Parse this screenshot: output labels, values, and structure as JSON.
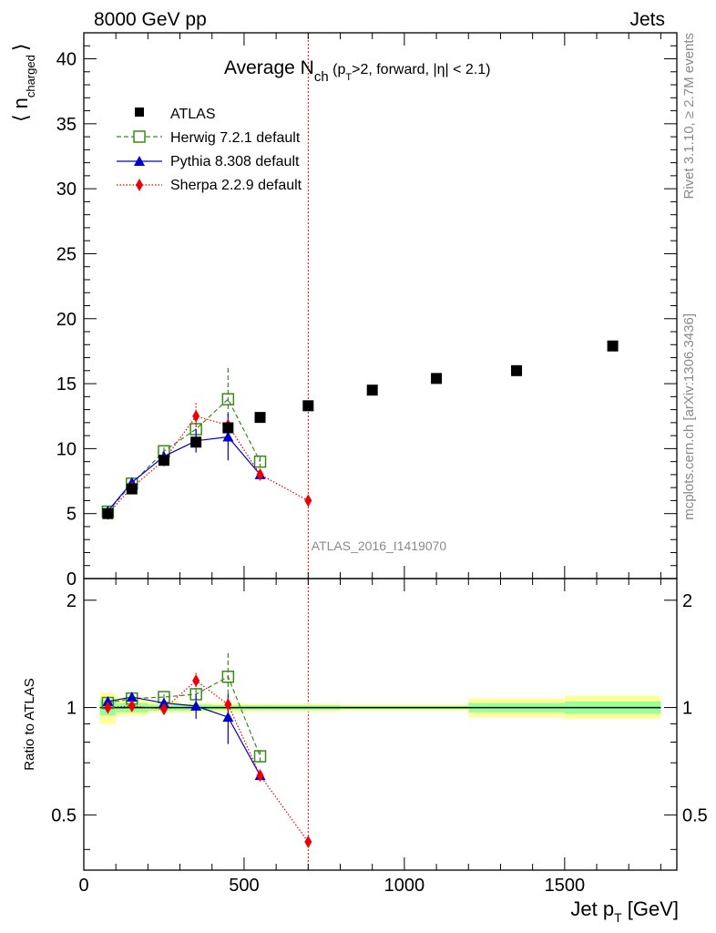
{
  "header": {
    "left": "8000 GeV pp",
    "right": "Jets"
  },
  "side_labels": {
    "rivet": "Rivet 3.1.10, ≥ 2.7M events",
    "mcplots": "mcplots.cern.ch [arXiv:1306.3436]"
  },
  "analysis_id": "ATLAS_2016_I1419070",
  "colors": {
    "atlas": "#000000",
    "herwig": "#3a8a1a",
    "pythia": "#0000cc",
    "sherpa": "#ee0000",
    "band_outer": "#ffff99",
    "band_inner": "#99ff99"
  },
  "chart_data": [
    {
      "type": "scatter",
      "title": "Average N_ch (p_T>2, forward, |η| < 2.1)",
      "title_parts": {
        "main": "Average N",
        "sub1": "ch",
        "paren_open": " (p",
        "sub2": "T",
        "paren_rest": ">2, forward, |η| < 2.1)"
      },
      "ylabel_parts": {
        "bracket_l": "⟨",
        "n": "n",
        "sub": "charged",
        "bracket_r": "⟩"
      },
      "xlim": [
        0,
        1850
      ],
      "ylim": [
        0,
        42
      ],
      "y_ticks": [
        "0",
        "5",
        "10",
        "15",
        "20",
        "25",
        "30",
        "35",
        "40"
      ],
      "legend_position": "top-left",
      "vertical_line_x": 700,
      "series": [
        {
          "name": "ATLAS",
          "x": [
            75,
            150,
            250,
            350,
            450,
            550,
            700,
            900,
            1100,
            1350,
            1650
          ],
          "y": [
            5.0,
            6.9,
            9.1,
            10.5,
            11.6,
            12.4,
            13.3,
            14.5,
            15.4,
            16.0,
            17.9
          ]
        },
        {
          "name": "Herwig 7.2.1 default",
          "x": [
            75,
            150,
            250,
            350,
            450,
            550
          ],
          "y": [
            5.15,
            7.3,
            9.8,
            11.5,
            13.8,
            9.0
          ],
          "err": [
            0.15,
            0.2,
            0.3,
            0.5,
            2.4,
            0.4
          ]
        },
        {
          "name": "Pythia 8.308 default",
          "x": [
            75,
            150,
            250,
            350,
            450,
            550
          ],
          "y": [
            5.2,
            7.4,
            9.4,
            10.6,
            10.9,
            8.0
          ],
          "err": [
            0.1,
            0.2,
            0.3,
            0.9,
            1.8,
            0.2
          ]
        },
        {
          "name": "Sherpa 2.2.9 default",
          "x": [
            75,
            150,
            250,
            350,
            450,
            550,
            700
          ],
          "y": [
            5.0,
            7.0,
            9.1,
            12.5,
            11.8,
            8.0,
            6.0
          ],
          "err": [
            0.1,
            0.2,
            0.3,
            1.0,
            0.6,
            0.2,
            0.1
          ]
        }
      ]
    },
    {
      "type": "scatter",
      "ylabel": "Ratio to ATLAS",
      "xlabel_parts": {
        "main": "Jet p",
        "sub": "T",
        "rest": " [GeV]"
      },
      "xlim": [
        0,
        1850
      ],
      "ylim": [
        0.35,
        2.3
      ],
      "x_ticks": [
        "0",
        "500",
        "1000",
        "1500"
      ],
      "y_ticks": [
        "0.5",
        "1",
        "2"
      ],
      "vertical_line_x": 700,
      "reference_line_y": 1,
      "band_bins": [
        {
          "x0": 50,
          "x1": 100,
          "inner": [
            0.95,
            1.05
          ],
          "outer": [
            0.9,
            1.1
          ]
        },
        {
          "x0": 100,
          "x1": 200,
          "inner": [
            0.97,
            1.03
          ],
          "outer": [
            0.95,
            1.07
          ]
        },
        {
          "x0": 200,
          "x1": 300,
          "inner": [
            0.98,
            1.02
          ],
          "outer": [
            0.97,
            1.04
          ]
        },
        {
          "x0": 300,
          "x1": 400,
          "inner": [
            0.98,
            1.02
          ],
          "outer": [
            0.97,
            1.03
          ]
        },
        {
          "x0": 400,
          "x1": 500,
          "inner": [
            0.985,
            1.015
          ],
          "outer": [
            0.97,
            1.03
          ]
        },
        {
          "x0": 500,
          "x1": 600,
          "inner": [
            0.985,
            1.015
          ],
          "outer": [
            0.975,
            1.025
          ]
        },
        {
          "x0": 600,
          "x1": 800,
          "inner": [
            0.985,
            1.015
          ],
          "outer": [
            0.975,
            1.025
          ]
        },
        {
          "x0": 800,
          "x1": 1000,
          "inner": [
            0.99,
            1.01
          ],
          "outer": [
            0.98,
            1.02
          ]
        },
        {
          "x0": 1000,
          "x1": 1200,
          "inner": [
            0.99,
            1.01
          ],
          "outer": [
            0.98,
            1.02
          ]
        },
        {
          "x0": 1200,
          "x1": 1500,
          "inner": [
            0.97,
            1.03
          ],
          "outer": [
            0.94,
            1.06
          ]
        },
        {
          "x0": 1500,
          "x1": 1800,
          "inner": [
            0.96,
            1.04
          ],
          "outer": [
            0.93,
            1.08
          ]
        }
      ],
      "series": [
        {
          "name": "Herwig 7.2.1 default",
          "x": [
            75,
            150,
            250,
            350,
            450,
            550
          ],
          "y": [
            1.03,
            1.06,
            1.07,
            1.09,
            1.22,
            0.73
          ],
          "err": [
            0.02,
            0.02,
            0.02,
            0.04,
            0.2,
            0.03
          ]
        },
        {
          "name": "Pythia 8.308 default",
          "x": [
            75,
            150,
            250,
            350,
            450,
            550
          ],
          "y": [
            1.04,
            1.07,
            1.03,
            1.01,
            0.94,
            0.645
          ],
          "err": [
            0.02,
            0.02,
            0.02,
            0.08,
            0.15,
            0.02
          ]
        },
        {
          "name": "Sherpa 2.2.9 default",
          "x": [
            75,
            150,
            250,
            350,
            450,
            550,
            700
          ],
          "y": [
            1.0,
            1.01,
            0.99,
            1.19,
            1.02,
            0.645,
            0.42
          ],
          "err": [
            0.02,
            0.02,
            0.02,
            0.06,
            0.05,
            0.02,
            0.01
          ]
        }
      ]
    }
  ]
}
